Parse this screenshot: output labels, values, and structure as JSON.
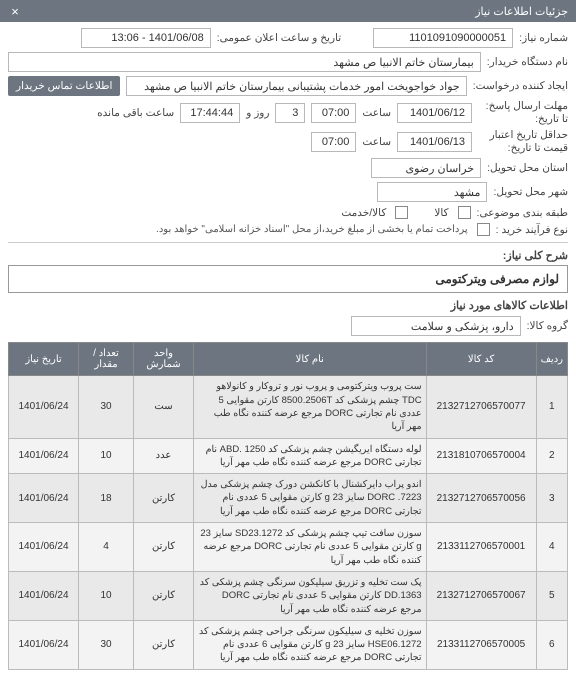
{
  "bar": {
    "title": "جزئیات اطلاعات نیاز",
    "close": "×"
  },
  "form": {
    "need_no_label": "شماره نیاز:",
    "need_no": "1101091090000051",
    "announce_label": "تاریخ و ساعت اعلان عمومی:",
    "announce": "1401/06/08 - 13:06",
    "buyer_label": "نام دستگاه خریدار:",
    "buyer": "بیمارستان خاتم الانبیا  ص  مشهد",
    "requester_label": "ایجاد کننده درخواست:",
    "requester": "جواد خواجویخت امور خدمات پشتیبانی بیمارستان خاتم الانبیا  ص  مشهد",
    "contact_badge": "اطلاعات تماس خریدار",
    "deadline_label": "مهلت ارسال پاسخ: تا تاریخ:",
    "deadline_date": "1401/06/12",
    "time_label": "ساعت",
    "deadline_time": "07:00",
    "days_count": "3",
    "days_label": "روز و",
    "remaining_time": "17:44:44",
    "remaining_label": "ساعت باقی مانده",
    "validity_label": "حداقل تاریخ اعتبار قیمت تا تاریخ:",
    "validity_date": "1401/06/13",
    "validity_time": "07:00",
    "province_label": "استان محل تحویل:",
    "province": "خراسان رضوی",
    "city_label": "شهر محل تحویل:",
    "city": "مشهد",
    "category_label": "طبقه بندی موضوعی:",
    "cat_goods": "کالا",
    "cat_service": "کالا/خدمت",
    "purchase_type_label": "نوع فرآیند خرید :",
    "purchase_note": "پرداخت تمام یا بخشی از مبلغ خرید،از محل \"اسناد خزانه اسلامی\" خواهد بود.",
    "desc_label": "شرح کلی نیاز:",
    "desc_value": "لوازم مصرفی ویترکتومی",
    "table_title": "اطلاعات کالاهای مورد نیاز",
    "group_label": "گروه کالا:",
    "group_value": "دارو، پزشکی و سلامت"
  },
  "table": {
    "headers": {
      "row": "ردیف",
      "code": "کد کالا",
      "name": "نام کالا",
      "unit": "واحد شمارش",
      "qty": "تعداد / مقدار",
      "date": "تاریخ نیاز"
    },
    "rows": [
      {
        "n": "1",
        "code": "2132712706570077",
        "name": "ست پروب ویترکتومی و پروب نور و تروکار و کانولاهو TDC چشم پزشکی کد 8500.2506T کارتن مقوایی 5 عددی نام تجارتی DORC مرجع عرضه کننده نگاه طب مهر آریا",
        "unit": "ست",
        "qty": "30",
        "date": "1401/06/24"
      },
      {
        "n": "2",
        "code": "2131810706570004",
        "name": "لوله دستگاه ایریگیشن چشم پزشکی کد ABD. 1250 نام تجارتی DORC مرجع عرضه کننده نگاه طب مهر آریا",
        "unit": "عدد",
        "qty": "10",
        "date": "1401/06/24"
      },
      {
        "n": "3",
        "code": "2132712706570056",
        "name": "اندو پراب دایرکشنال با کانکشن دورک چشم پزشکی مدل DORC .7223 سایز 23 g کارتن مقوایی 5 عددی نام تجارتی DORC مرجع عرضه کننده نگاه طب مهر آریا",
        "unit": "کارتن",
        "qty": "18",
        "date": "1401/06/24"
      },
      {
        "n": "4",
        "code": "2133112706570001",
        "name": "سوزن سافت تیپ چشم پزشکی کد SD23.1272 سایز 23 g کارتن مقوایی 5 عددی نام تجارتی DORC مرجع عرضه کننده نگاه طب مهر آریا",
        "unit": "کارتن",
        "qty": "4",
        "date": "1401/06/24"
      },
      {
        "n": "5",
        "code": "2132712706570067",
        "name": "پک ست تخلیه و تزریق سیلیکون سرنگی چشم پزشکی کد DD.1363 کارتن مقوایی 5 عددی نام تجارتی DORC مرجع عرضه کننده نگاه طب مهر آریا",
        "unit": "کارتن",
        "qty": "10",
        "date": "1401/06/24"
      },
      {
        "n": "6",
        "code": "2133112706570005",
        "name": "سوزن تخلیه ی سیلیکون سرنگی جراحی چشم پزشکی کد HSE06.1272 سایز 23 g کارتن مقوایی 6 عددی نام تجارتی DORC مرجع عرضه کننده نگاه طب مهر آریا",
        "unit": "کارتن",
        "qty": "30",
        "date": "1401/06/24"
      }
    ]
  },
  "watermark": "۰۲۱-۸۸۲۶"
}
